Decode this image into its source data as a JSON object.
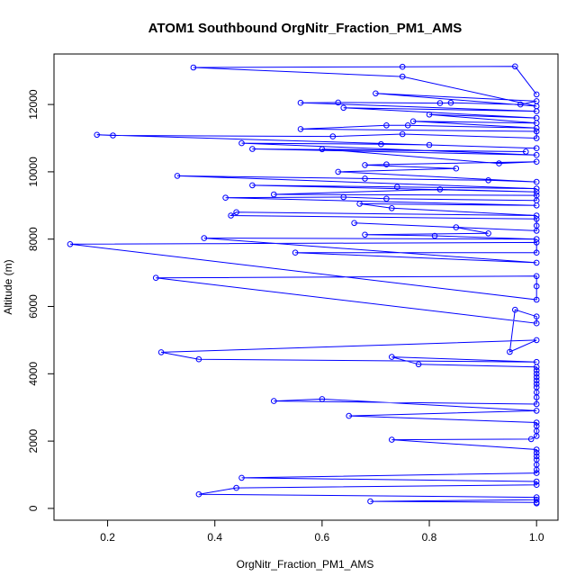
{
  "chart_data": {
    "type": "line",
    "title": "ATOM1 Southbound OrgNitr_Fraction_PM1_AMS",
    "xlabel": "OrgNitr_Fraction_PM1_AMS",
    "ylabel": "Altitude (m)",
    "xlim": [
      0.1,
      1.04
    ],
    "ylim": [
      -350,
      13500
    ],
    "xticks": [
      0.2,
      0.4,
      0.6,
      0.8,
      1.0
    ],
    "xtick_labels": [
      "0.2",
      "0.4",
      "0.6",
      "0.8",
      "1.0"
    ],
    "yticks": [
      0,
      2000,
      4000,
      6000,
      8000,
      10000,
      12000
    ],
    "ytick_labels": [
      "0",
      "2000",
      "4000",
      "6000",
      "8000",
      "10000",
      "12000"
    ],
    "series_color": "#0000ff",
    "series": [
      {
        "name": "OrgNitr_Fraction_PM1_AMS",
        "points": [
          [
            1.0,
            150
          ],
          [
            1.0,
            180
          ],
          [
            0.69,
            210
          ],
          [
            1.0,
            260
          ],
          [
            1.0,
            330
          ],
          [
            0.37,
            420
          ],
          [
            0.44,
            610
          ],
          [
            1.0,
            700
          ],
          [
            1.0,
            800
          ],
          [
            0.45,
            910
          ],
          [
            1.0,
            1050
          ],
          [
            1.0,
            1150
          ],
          [
            1.0,
            1300
          ],
          [
            1.0,
            1450
          ],
          [
            1.0,
            1550
          ],
          [
            1.0,
            1650
          ],
          [
            1.0,
            1750
          ],
          [
            0.73,
            2040
          ],
          [
            0.99,
            2060
          ],
          [
            1.0,
            2150
          ],
          [
            1.0,
            2300
          ],
          [
            1.0,
            2450
          ],
          [
            1.0,
            2550
          ],
          [
            0.65,
            2750
          ],
          [
            1.0,
            2900
          ],
          [
            0.6,
            3250
          ],
          [
            0.51,
            3190
          ],
          [
            1.0,
            3100
          ],
          [
            1.0,
            3300
          ],
          [
            1.0,
            3450
          ],
          [
            1.0,
            3600
          ],
          [
            1.0,
            3700
          ],
          [
            1.0,
            3800
          ],
          [
            1.0,
            3900
          ],
          [
            1.0,
            4000
          ],
          [
            1.0,
            4100
          ],
          [
            1.0,
            4200
          ],
          [
            0.78,
            4280
          ],
          [
            0.73,
            4500
          ],
          [
            1.0,
            4350
          ],
          [
            0.37,
            4430
          ],
          [
            0.3,
            4640
          ],
          [
            1.0,
            5000
          ],
          [
            0.95,
            4650
          ],
          [
            0.96,
            5900
          ],
          [
            1.0,
            5700
          ],
          [
            1.0,
            5500
          ],
          [
            0.29,
            6850
          ],
          [
            1.0,
            6900
          ],
          [
            1.0,
            6600
          ],
          [
            1.0,
            6200
          ],
          [
            0.13,
            7850
          ],
          [
            1.0,
            7900
          ],
          [
            1.0,
            7600
          ],
          [
            0.55,
            7600
          ],
          [
            1.0,
            7300
          ],
          [
            0.38,
            8030
          ],
          [
            1.0,
            8000
          ],
          [
            0.81,
            8100
          ],
          [
            0.68,
            8130
          ],
          [
            0.91,
            8170
          ],
          [
            0.85,
            8350
          ],
          [
            0.66,
            8480
          ],
          [
            1.0,
            8250
          ],
          [
            1.0,
            8400
          ],
          [
            1.0,
            8600
          ],
          [
            0.43,
            8700
          ],
          [
            0.44,
            8800
          ],
          [
            1.0,
            8700
          ],
          [
            0.73,
            8920
          ],
          [
            0.67,
            9050
          ],
          [
            1.0,
            9000
          ],
          [
            0.42,
            9230
          ],
          [
            0.64,
            9250
          ],
          [
            0.72,
            9200
          ],
          [
            1.0,
            9150
          ],
          [
            1.0,
            9300
          ],
          [
            0.51,
            9330
          ],
          [
            0.82,
            9480
          ],
          [
            1.0,
            9400
          ],
          [
            0.47,
            9600
          ],
          [
            0.74,
            9550
          ],
          [
            1.0,
            9500
          ],
          [
            0.33,
            9880
          ],
          [
            0.68,
            9800
          ],
          [
            0.91,
            9750
          ],
          [
            1.0,
            9700
          ],
          [
            0.63,
            10000
          ],
          [
            0.85,
            10100
          ],
          [
            0.68,
            10200
          ],
          [
            0.72,
            10220
          ],
          [
            1.0,
            10300
          ],
          [
            0.93,
            10250
          ],
          [
            0.6,
            10670
          ],
          [
            0.98,
            10600
          ],
          [
            0.47,
            10680
          ],
          [
            1.0,
            10500
          ],
          [
            0.45,
            10850
          ],
          [
            0.71,
            10820
          ],
          [
            0.8,
            10800
          ],
          [
            1.0,
            10700
          ],
          [
            0.18,
            11100
          ],
          [
            0.21,
            11080
          ],
          [
            0.62,
            11050
          ],
          [
            0.75,
            11120
          ],
          [
            1.0,
            11000
          ],
          [
            1.0,
            11200
          ],
          [
            0.56,
            11270
          ],
          [
            0.72,
            11380
          ],
          [
            0.76,
            11380
          ],
          [
            1.0,
            11300
          ],
          [
            0.77,
            11500
          ],
          [
            1.0,
            11450
          ],
          [
            0.8,
            11700
          ],
          [
            1.0,
            11600
          ],
          [
            0.64,
            11900
          ],
          [
            1.0,
            11800
          ],
          [
            0.56,
            12050
          ],
          [
            0.63,
            12060
          ],
          [
            0.82,
            12040
          ],
          [
            0.84,
            12050
          ],
          [
            0.97,
            12000
          ],
          [
            1.0,
            12100
          ],
          [
            0.7,
            12330
          ],
          [
            1.0,
            11950
          ],
          [
            0.75,
            12830
          ],
          [
            0.36,
            13100
          ],
          [
            0.75,
            13120
          ],
          [
            0.96,
            13130
          ],
          [
            1.0,
            12300
          ]
        ]
      }
    ]
  }
}
